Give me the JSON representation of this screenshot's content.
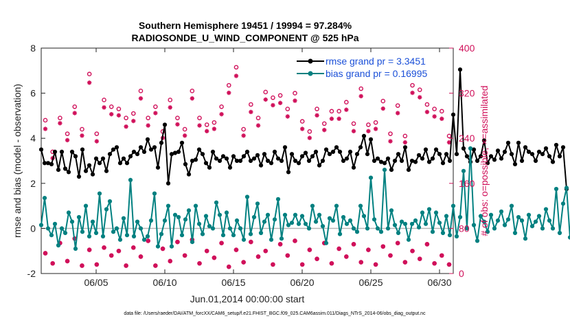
{
  "chart_data": {
    "type": "line",
    "title": "Southern Hemisphere 19451 / 19994 = 97.284%",
    "subtitle": "RADIOSONDE_U_WIND_COMPONENT @ 525 hPa",
    "xlabel": "Jun.01,2014 00:00:00 start",
    "ylabel": "rmse and bias (model - observation)",
    "ylabel_right": "# of obs: o=possible; ×=assimilated",
    "xlim": [
      1,
      31
    ],
    "ylim": [
      -2,
      8
    ],
    "ylim_right": [
      0,
      400
    ],
    "x_ticks": [
      5,
      10,
      15,
      20,
      25,
      30
    ],
    "x_tick_labels": [
      "06/05",
      "06/10",
      "06/15",
      "06/20",
      "06/25",
      "06/30"
    ],
    "y_ticks": [
      "-2",
      "0",
      "2",
      "4",
      "6",
      "8"
    ],
    "y_ticks_right": [
      "0",
      "80",
      "160",
      "240",
      "320",
      "400"
    ],
    "legend": {
      "placement": "top-right",
      "rmse_label": "rmse grand pr = 3.3451",
      "bias_label": "bias grand pr = 0.16995"
    },
    "footnote": "data file: /Users/raeder/DAI/ATM_forcXX/CAM6_setup/f.e21.FHIST_BGC.f09_025.CAM6assim.011/Diags_NTrS_2014-06/obs_diag_output.nc",
    "x_start": 1,
    "x_step": 0.25,
    "series": [
      {
        "name": "rmse",
        "color": "#000000",
        "axis": "left",
        "values": [
          3.5,
          2.9,
          2.9,
          2.85,
          3.4,
          2.6,
          3.4,
          2.65,
          2.5,
          3.4,
          3.2,
          2.3,
          3.5,
          2.55,
          2.8,
          2.4,
          3.1,
          2.9,
          3.1,
          2.55,
          3.3,
          3.5,
          3.6,
          2.9,
          3.1,
          2.9,
          3.2,
          3.4,
          3.3,
          3.6,
          3.4,
          3.95,
          3.5,
          3.6,
          2.7,
          3.8,
          4.6,
          2.0,
          3.3,
          3.35,
          3.4,
          3.8,
          2.85,
          2.4,
          3.0,
          3.05,
          3.5,
          3.3,
          2.9,
          2.7,
          3.4,
          3.1,
          3.0,
          3.2,
          3.1,
          2.7,
          3.2,
          3.0,
          3.0,
          3.2,
          3.4,
          3.0,
          3.1,
          3.25,
          2.8,
          3.3,
          3.0,
          2.9,
          3.4,
          3.1,
          3.0,
          3.6,
          2.5,
          3.3,
          3.0,
          2.9,
          3.2,
          3.35,
          3.0,
          3.2,
          3.4,
          2.8,
          3.0,
          3.5,
          3.3,
          3.4,
          3.6,
          3.4,
          3.0,
          3.1,
          3.4,
          2.7,
          3.3,
          3.6,
          4.1,
          3.3,
          3.95,
          3.0,
          3.1,
          2.95,
          2.9,
          3.1,
          2.6,
          3.0,
          3.3,
          3.0,
          3.6,
          2.6,
          3.0,
          2.95,
          3.25,
          3.1,
          3.5,
          2.95,
          3.1,
          3.5,
          3.3,
          2.9,
          3.3,
          3.0,
          5.05,
          3.3,
          7.05,
          3.55,
          3.2,
          2.95,
          3.5,
          3.0,
          3.2,
          3.9,
          2.9,
          3.2,
          3.05,
          3.45,
          3.1,
          3.4,
          3.8,
          3.3,
          2.85,
          3.8,
          3.0,
          3.6,
          3.4,
          3.3,
          3.0,
          3.4,
          3.3,
          3.55,
          3.2,
          2.95,
          3.7,
          3.2,
          3.6,
          1.75
        ]
      },
      {
        "name": "bias",
        "color": "#008080",
        "axis": "left",
        "values": [
          0.15,
          1.35,
          0.0,
          -0.3,
          0.2,
          -0.75,
          0.0,
          -0.2,
          0.7,
          0.3,
          -0.9,
          0.5,
          -0.15,
          1.0,
          -0.35,
          0.3,
          -0.2,
          1.55,
          -0.35,
          0.85,
          1.2,
          -0.15,
          0.0,
          -0.5,
          0.45,
          -0.3,
          2.15,
          -0.35,
          0.3,
          0.0,
          -0.5,
          -0.35,
          0.35,
          1.55,
          -0.8,
          -0.25,
          0.35,
          1.0,
          -0.8,
          0.6,
          0.5,
          -0.3,
          0.4,
          0.8,
          -0.6,
          1.0,
          0.2,
          -0.25,
          0.55,
          0.1,
          0.0,
          1.15,
          0.6,
          -0.3,
          0.7,
          0.0,
          -0.3,
          0.35,
          0.0,
          -0.5,
          1.4,
          -0.25,
          0.5,
          1.1,
          -0.2,
          0.3,
          0.6,
          -0.5,
          0.4,
          1.3,
          -0.45,
          0.6,
          0.15,
          0.25,
          0.6,
          0.2,
          0.55,
          0.2,
          0.0,
          1.0,
          0.3,
          0.6,
          0.1,
          -0.65,
          0.45,
          0.35,
          1.0,
          -0.25,
          0.5,
          0.2,
          0.35,
          0.0,
          -0.15,
          1.0,
          0.55,
          0.0,
          2.25,
          0.4,
          0.0,
          -0.15,
          2.6,
          0.0,
          0.8,
          0.15,
          -0.2,
          0.3,
          0.2,
          -0.5,
          0.2,
          0.35,
          0.05,
          0.7,
          0.2,
          0.85,
          -0.15,
          0.7,
          0.25,
          -0.2,
          0.55,
          -0.3,
          1.0,
          -0.35,
          0.5,
          2.55,
          0.0,
          3.55,
          0.15,
          -0.55,
          0.55,
          0.3,
          -0.15,
          0.6,
          0.0,
          0.35,
          0.75,
          0.15,
          0.4,
          1.0,
          -0.2,
          0.5,
          0.35,
          -0.45,
          0.6,
          0.1,
          0.3,
          0.55,
          0.0,
          0.85,
          0.35,
          0.0,
          1.75,
          -0.2,
          1.1,
          1.8,
          -0.4,
          0.3
        ]
      }
    ],
    "obs_possible_left_units": [
      4.8,
      3.4,
      4.9,
      4.2,
      5.4,
      4.4,
      6.85,
      4.2,
      5.7,
      5.4,
      5.3,
      4.9,
      5.1,
      6.1,
      4.9,
      5.4,
      4.3,
      5.7,
      4.9,
      4.4,
      6.1,
      4.9,
      4.6,
      4.7,
      5.4,
      6.35,
      7.15,
      4.4,
      5.5,
      4.9,
      6.05,
      5.8,
      5.9,
      5.3,
      6.0,
      4.75,
      4.3,
      5.3,
      4.65,
      5.2,
      5.2,
      5.6,
      4.65,
      6.2,
      4.6,
      4.7,
      5.65,
      4.2,
      5.45,
      4.1,
      6.35,
      6.15,
      5.5,
      5.3,
      5.2,
      4.1
    ],
    "obs_assimilated_left_units": [
      4.6,
      3.3,
      4.85,
      4.1,
      5.3,
      4.3,
      6.65,
      4.05,
      5.55,
      5.25,
      5.2,
      4.7,
      4.95,
      5.95,
      4.75,
      5.3,
      4.2,
      5.55,
      4.8,
      4.3,
      5.95,
      4.75,
      4.5,
      4.6,
      5.25,
      6.2,
      6.95,
      4.3,
      5.35,
      4.75,
      5.9,
      5.65,
      5.75,
      5.15,
      5.85,
      4.6,
      4.2,
      5.2,
      4.55,
      5.05,
      5.05,
      5.45,
      4.5,
      6.05,
      4.5,
      4.6,
      5.5,
      4.05,
      5.3,
      4.0,
      6.2,
      6.0,
      5.35,
      5.15,
      5.05,
      4.0
    ],
    "obs_low_left_units": [
      -1.1,
      -1.55,
      -0.65,
      -1.45,
      -0.45,
      -1.65,
      -0.95,
      -1.6,
      -0.85,
      -1.2,
      -1.0,
      -1.65,
      -0.85,
      -1.25,
      -0.55,
      -1.65,
      -0.9,
      -1.45,
      -0.6,
      -1.2,
      -0.5,
      -1.55,
      -1.0,
      -1.3,
      -0.65,
      -1.7,
      -0.95,
      -1.5,
      -0.6,
      -1.25,
      -1.0,
      -1.6,
      -0.7,
      -1.2,
      -0.55,
      -1.6,
      -0.95,
      -1.35,
      -0.65,
      -1.55,
      -0.9,
      -1.25,
      -0.7,
      -1.5,
      -0.95,
      -1.6,
      -0.8,
      -1.2,
      -0.65,
      -1.5,
      -1.0,
      -1.35,
      -0.7,
      -1.55,
      -1.2,
      -1.6
    ],
    "obs_marker_color": "#d0105a"
  }
}
